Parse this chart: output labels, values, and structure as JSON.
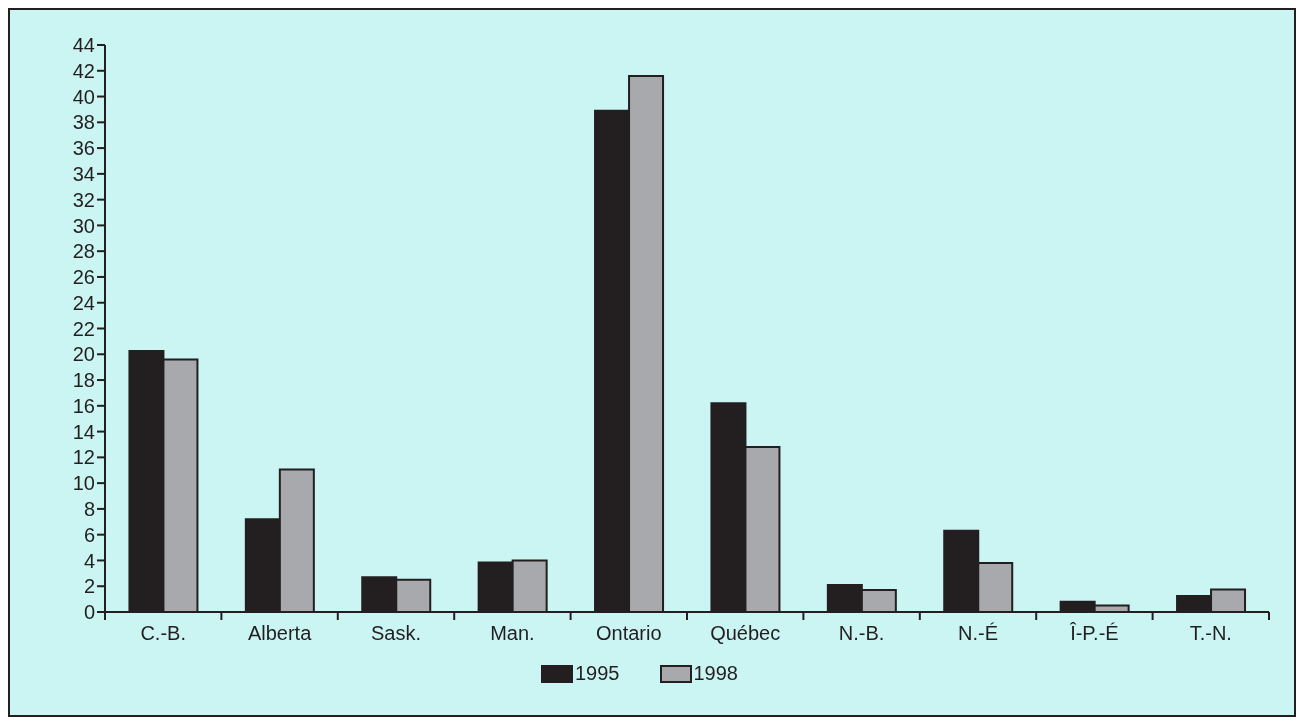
{
  "chart_data": {
    "type": "bar",
    "categories": [
      "C.-B.",
      "Alberta",
      "Sask.",
      "Man.",
      "Ontario",
      "Québec",
      "N.-B.",
      "N.-É",
      "Î-P.-É",
      "T.-N."
    ],
    "series": [
      {
        "name": "1995",
        "color": "#231f20",
        "values": [
          20.25,
          7.2,
          2.7,
          3.85,
          38.9,
          16.2,
          2.1,
          6.3,
          0.8,
          1.25
        ]
      },
      {
        "name": "1998",
        "color": "#a7a9ac",
        "values": [
          19.6,
          11.05,
          2.5,
          4.0,
          41.6,
          12.8,
          1.7,
          3.8,
          0.5,
          1.75
        ]
      }
    ],
    "ylim": [
      0,
      44
    ],
    "yticks": [
      0,
      2,
      4,
      6,
      8,
      10,
      12,
      14,
      16,
      18,
      20,
      22,
      24,
      26,
      28,
      30,
      32,
      34,
      36,
      38,
      40,
      42,
      44
    ],
    "grid": false,
    "legend": "bottom"
  }
}
